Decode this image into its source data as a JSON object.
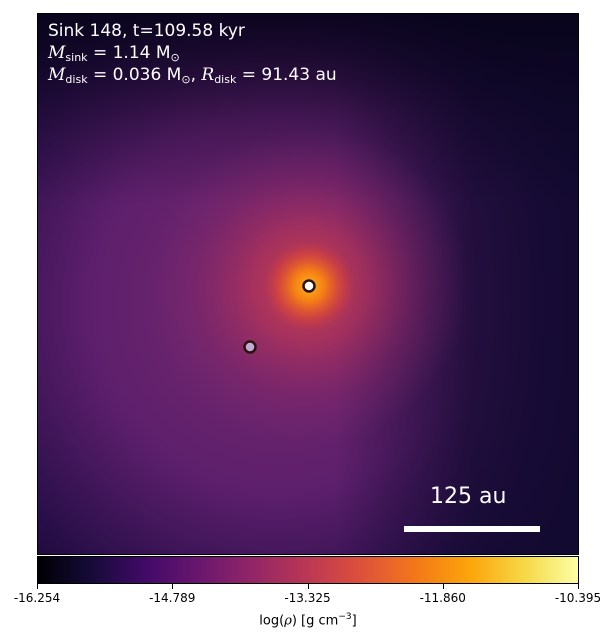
{
  "figure": {
    "title_line": "Sink 148, t=109.58 kyr",
    "msink_label": "M",
    "msink_sub": "sink",
    "msink_value": " = 1.14 M",
    "mdisk_label": "M",
    "mdisk_sub": "disk",
    "mdisk_value": " = 0.036 M",
    "rdisk_label": "R",
    "rdisk_sub": "disk",
    "rdisk_value": " = 91.43 au",
    "sun_symbol": "⊙",
    "comma": ","
  },
  "scalebar": {
    "label": "125 au"
  },
  "sinks": [
    {
      "name": "primary-sink",
      "color": "#ffffff"
    },
    {
      "name": "secondary-sink",
      "color": "#c7a9d8"
    }
  ],
  "colorbar": {
    "ticks": [
      "-16.254",
      "-14.789",
      "-13.325",
      "-11.860",
      "-10.395"
    ],
    "label_prefix": "log(",
    "label_rho": "ρ",
    "label_suffix": ") [g cm",
    "label_exp": "−3",
    "label_end": "]",
    "colormap": "inferno"
  }
}
